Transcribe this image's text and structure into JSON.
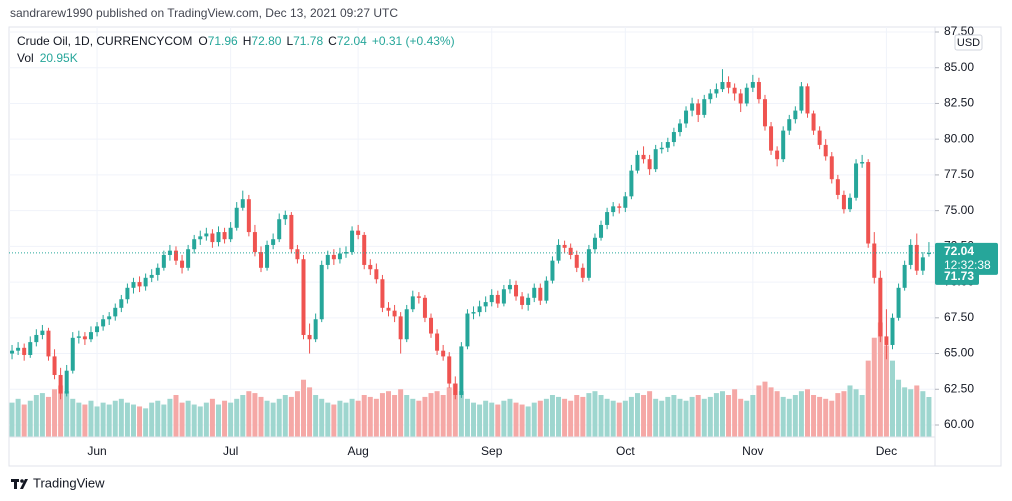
{
  "chart_data": {
    "type": "candlestick",
    "attribution": "sandrarew1990 published on TradingView.com, Dec 13, 2021 09:27 UTC",
    "title": "Crude Oil, 1D, CURRENCYCOM",
    "ohlc_header": [
      {
        "label": "O",
        "value": "71.96"
      },
      {
        "label": "H",
        "value": "72.80"
      },
      {
        "label": "L",
        "value": "71.78"
      },
      {
        "label": "C",
        "value": "72.04"
      }
    ],
    "change": "+0.31 (+0.43%)",
    "volume_label": "Vol",
    "volume_value": "20.95K",
    "currency": "USD",
    "brand": "TradingView",
    "up_color": "#26a69a",
    "down_color": "#ef5350",
    "up_volume_color": "#9ed6cf",
    "down_volume_color": "#f5a8a6",
    "last_price": 72.04,
    "countdown": "12:32:38",
    "prev_close": 71.73,
    "grid": true,
    "ylim": [
      59.16,
      87.85
    ],
    "yticks": [
      {
        "value": 60,
        "label": "60.00"
      },
      {
        "value": 62.5,
        "label": "62.50"
      },
      {
        "value": 65,
        "label": "65.00"
      },
      {
        "value": 67.5,
        "label": "67.50"
      },
      {
        "value": 70,
        "label": "70.00"
      },
      {
        "value": 72.5,
        "label": "72.50"
      },
      {
        "value": 75,
        "label": "75.00"
      },
      {
        "value": 77.5,
        "label": "77.50"
      },
      {
        "value": 80,
        "label": "80.00"
      },
      {
        "value": 82.5,
        "label": "82.50"
      },
      {
        "value": 85,
        "label": "85.00"
      },
      {
        "value": 87.5,
        "label": "87.50"
      }
    ],
    "xlim": [
      -0.5,
      152
    ],
    "xticks": [
      {
        "value": 14,
        "label": "Jun"
      },
      {
        "value": 36,
        "label": "Jul"
      },
      {
        "value": 57,
        "label": "Aug"
      },
      {
        "value": 79,
        "label": "Sep"
      },
      {
        "value": 101,
        "label": "Oct"
      },
      {
        "value": 122,
        "label": "Nov"
      },
      {
        "value": 144,
        "label": "Dec"
      }
    ],
    "volume_lim": [
      0,
      110
    ],
    "candles": [
      [
        65.0,
        65.6,
        64.6,
        65.2
      ],
      [
        65.2,
        65.8,
        64.9,
        65.4
      ],
      [
        65.4,
        65.7,
        64.5,
        64.9
      ],
      [
        64.9,
        66.2,
        64.7,
        65.8
      ],
      [
        65.8,
        66.7,
        65.5,
        66.3
      ],
      [
        66.3,
        67.0,
        66.0,
        66.6
      ],
      [
        66.6,
        66.8,
        64.5,
        64.8
      ],
      [
        64.8,
        65.3,
        63.2,
        63.5
      ],
      [
        63.5,
        64.0,
        61.8,
        62.2
      ],
      [
        62.2,
        64.2,
        62.0,
        63.8
      ],
      [
        63.8,
        66.5,
        63.6,
        66.1
      ],
      [
        66.1,
        66.6,
        65.7,
        66.2
      ],
      [
        66.2,
        66.5,
        65.6,
        66.0
      ],
      [
        66.0,
        66.9,
        65.8,
        66.5
      ],
      [
        66.5,
        67.2,
        66.2,
        66.9
      ],
      [
        66.9,
        67.7,
        66.6,
        67.4
      ],
      [
        67.4,
        67.9,
        67.0,
        67.6
      ],
      [
        67.6,
        68.5,
        67.3,
        68.2
      ],
      [
        68.2,
        69.1,
        67.9,
        68.8
      ],
      [
        68.8,
        69.9,
        68.5,
        69.6
      ],
      [
        69.6,
        70.3,
        69.2,
        70.0
      ],
      [
        70.0,
        70.4,
        69.3,
        69.7
      ],
      [
        69.7,
        70.6,
        69.4,
        70.3
      ],
      [
        70.3,
        70.9,
        70.0,
        70.5
      ],
      [
        70.5,
        71.3,
        70.1,
        71.0
      ],
      [
        71.0,
        72.2,
        70.8,
        71.9
      ],
      [
        71.9,
        72.6,
        71.5,
        72.2
      ],
      [
        72.2,
        72.5,
        71.2,
        71.5
      ],
      [
        71.5,
        71.9,
        70.6,
        71.0
      ],
      [
        71.0,
        72.6,
        70.8,
        72.3
      ],
      [
        72.3,
        73.3,
        72.0,
        73.0
      ],
      [
        73.0,
        73.6,
        72.6,
        73.2
      ],
      [
        73.2,
        73.8,
        72.9,
        73.4
      ],
      [
        73.4,
        73.7,
        72.4,
        72.8
      ],
      [
        72.8,
        73.9,
        72.5,
        73.5
      ],
      [
        73.5,
        73.8,
        72.7,
        73.0
      ],
      [
        73.0,
        74.2,
        72.8,
        73.8
      ],
      [
        73.8,
        75.6,
        73.6,
        75.2
      ],
      [
        75.2,
        76.4,
        75.0,
        75.8
      ],
      [
        75.8,
        76.1,
        73.2,
        73.5
      ],
      [
        73.5,
        74.0,
        71.8,
        72.1
      ],
      [
        72.1,
        72.5,
        70.7,
        71.0
      ],
      [
        71.0,
        72.9,
        70.8,
        72.6
      ],
      [
        72.6,
        73.4,
        72.3,
        73.0
      ],
      [
        73.0,
        74.8,
        72.8,
        74.4
      ],
      [
        74.4,
        75.0,
        74.0,
        74.7
      ],
      [
        74.7,
        74.9,
        72.0,
        72.3
      ],
      [
        72.3,
        72.6,
        71.3,
        71.6
      ],
      [
        71.6,
        71.9,
        66.0,
        66.3
      ],
      [
        66.3,
        67.1,
        65.0,
        66.0
      ],
      [
        66.0,
        67.8,
        65.8,
        67.4
      ],
      [
        67.4,
        71.5,
        67.2,
        71.2
      ],
      [
        71.2,
        72.2,
        70.9,
        71.9
      ],
      [
        71.9,
        72.3,
        71.2,
        71.6
      ],
      [
        71.6,
        72.4,
        71.3,
        72.0
      ],
      [
        72.0,
        72.5,
        71.7,
        72.1
      ],
      [
        72.1,
        73.9,
        71.9,
        73.6
      ],
      [
        73.6,
        74.0,
        73.0,
        73.3
      ],
      [
        73.3,
        73.5,
        70.9,
        71.2
      ],
      [
        71.2,
        71.6,
        70.5,
        70.9
      ],
      [
        70.9,
        71.3,
        69.9,
        70.2
      ],
      [
        70.2,
        70.5,
        67.9,
        68.2
      ],
      [
        68.2,
        68.6,
        67.6,
        68.0
      ],
      [
        68.0,
        68.4,
        67.2,
        67.6
      ],
      [
        67.6,
        67.9,
        65.0,
        66.0
      ],
      [
        66.0,
        68.4,
        65.8,
        68.1
      ],
      [
        68.1,
        69.4,
        67.9,
        69.0
      ],
      [
        69.0,
        69.3,
        68.5,
        68.9
      ],
      [
        68.9,
        69.1,
        67.2,
        67.5
      ],
      [
        67.5,
        67.8,
        66.1,
        66.4
      ],
      [
        66.4,
        66.7,
        64.9,
        65.2
      ],
      [
        65.2,
        65.6,
        64.5,
        64.8
      ],
      [
        64.8,
        65.1,
        62.6,
        62.9
      ],
      [
        62.9,
        63.4,
        61.8,
        62.1
      ],
      [
        62.1,
        65.8,
        61.9,
        65.5
      ],
      [
        65.5,
        68.1,
        65.3,
        67.8
      ],
      [
        67.8,
        68.3,
        67.4,
        67.9
      ],
      [
        67.9,
        68.7,
        67.6,
        68.3
      ],
      [
        68.3,
        69.0,
        67.9,
        68.6
      ],
      [
        68.6,
        69.5,
        68.3,
        69.1
      ],
      [
        69.1,
        69.4,
        68.2,
        68.5
      ],
      [
        68.5,
        69.8,
        68.3,
        69.5
      ],
      [
        69.5,
        70.2,
        69.2,
        69.8
      ],
      [
        69.8,
        70.1,
        68.7,
        69.0
      ],
      [
        69.0,
        69.3,
        68.1,
        68.4
      ],
      [
        68.4,
        69.2,
        68.0,
        68.9
      ],
      [
        68.9,
        69.9,
        68.6,
        69.6
      ],
      [
        69.6,
        69.9,
        68.4,
        68.7
      ],
      [
        68.7,
        70.4,
        68.5,
        70.1
      ],
      [
        70.1,
        71.8,
        69.9,
        71.5
      ],
      [
        71.5,
        73.0,
        71.3,
        72.6
      ],
      [
        72.6,
        72.9,
        72.0,
        72.4
      ],
      [
        72.4,
        72.7,
        71.6,
        71.9
      ],
      [
        71.9,
        72.2,
        70.7,
        71.0
      ],
      [
        71.0,
        71.3,
        70.0,
        70.3
      ],
      [
        70.3,
        72.6,
        70.1,
        72.3
      ],
      [
        72.3,
        73.4,
        72.0,
        73.1
      ],
      [
        73.1,
        74.3,
        72.9,
        74.0
      ],
      [
        74.0,
        75.2,
        73.7,
        74.9
      ],
      [
        74.9,
        75.6,
        74.6,
        75.3
      ],
      [
        75.3,
        75.5,
        74.8,
        75.2
      ],
      [
        75.2,
        76.3,
        74.9,
        76.0
      ],
      [
        76.0,
        78.2,
        75.8,
        77.8
      ],
      [
        77.8,
        79.2,
        77.6,
        78.9
      ],
      [
        78.9,
        79.5,
        78.3,
        78.6
      ],
      [
        78.6,
        78.9,
        77.5,
        77.9
      ],
      [
        77.9,
        79.6,
        77.7,
        79.3
      ],
      [
        79.3,
        79.8,
        79.0,
        79.4
      ],
      [
        79.4,
        80.1,
        79.1,
        79.8
      ],
      [
        79.8,
        80.8,
        79.5,
        80.5
      ],
      [
        80.5,
        81.4,
        80.2,
        81.1
      ],
      [
        81.1,
        82.3,
        80.8,
        82.0
      ],
      [
        82.0,
        82.9,
        81.6,
        82.5
      ],
      [
        82.5,
        82.8,
        81.2,
        81.7
      ],
      [
        81.7,
        83.1,
        81.5,
        82.8
      ],
      [
        82.8,
        83.5,
        82.5,
        83.2
      ],
      [
        83.2,
        83.9,
        82.9,
        83.5
      ],
      [
        83.5,
        84.9,
        83.3,
        84.0
      ],
      [
        84.0,
        84.4,
        83.2,
        83.6
      ],
      [
        83.6,
        83.9,
        82.7,
        83.2
      ],
      [
        83.2,
        83.5,
        81.9,
        82.5
      ],
      [
        82.5,
        83.9,
        82.3,
        83.6
      ],
      [
        83.6,
        84.5,
        83.3,
        84.0
      ],
      [
        84.0,
        84.3,
        82.5,
        82.8
      ],
      [
        82.8,
        83.1,
        80.6,
        80.9
      ],
      [
        80.9,
        81.2,
        78.9,
        79.2
      ],
      [
        79.2,
        79.5,
        78.1,
        78.6
      ],
      [
        78.6,
        80.9,
        78.4,
        80.6
      ],
      [
        80.6,
        81.7,
        80.3,
        81.4
      ],
      [
        81.4,
        82.3,
        81.1,
        82.0
      ],
      [
        82.0,
        84.0,
        81.8,
        83.7
      ],
      [
        83.7,
        83.9,
        81.5,
        81.8
      ],
      [
        81.8,
        82.0,
        80.3,
        80.6
      ],
      [
        80.6,
        80.9,
        79.3,
        79.6
      ],
      [
        79.6,
        80.0,
        78.5,
        78.8
      ],
      [
        78.8,
        79.1,
        76.9,
        77.2
      ],
      [
        77.2,
        77.5,
        75.8,
        76.1
      ],
      [
        76.1,
        76.4,
        74.8,
        75.1
      ],
      [
        75.1,
        76.2,
        74.9,
        75.9
      ],
      [
        75.9,
        78.6,
        75.7,
        78.3
      ],
      [
        78.3,
        78.9,
        78.0,
        78.4
      ],
      [
        78.4,
        78.6,
        72.4,
        72.7
      ],
      [
        72.7,
        73.5,
        69.9,
        70.3
      ],
      [
        70.3,
        70.8,
        65.8,
        66.2
      ],
      [
        66.2,
        68.1,
        64.6,
        65.6
      ],
      [
        65.6,
        67.8,
        65.3,
        67.5
      ],
      [
        67.5,
        69.9,
        67.3,
        69.6
      ],
      [
        69.6,
        71.5,
        69.4,
        71.2
      ],
      [
        71.2,
        73.0,
        70.9,
        72.6
      ],
      [
        72.6,
        73.4,
        70.5,
        70.8
      ],
      [
        70.8,
        72.1,
        70.5,
        71.73
      ],
      [
        71.96,
        72.8,
        71.78,
        72.04
      ]
    ],
    "volume": [
      18,
      20,
      17,
      19,
      22,
      23,
      21,
      25,
      27,
      24,
      20,
      18,
      17,
      19,
      16,
      18,
      17,
      19,
      20,
      18,
      17,
      16,
      15,
      18,
      19,
      17,
      20,
      22,
      18,
      19,
      17,
      16,
      18,
      20,
      17,
      19,
      18,
      20,
      22,
      24,
      23,
      21,
      19,
      18,
      20,
      22,
      21,
      24,
      30,
      26,
      22,
      20,
      18,
      17,
      19,
      18,
      20,
      19,
      22,
      21,
      20,
      23,
      24,
      22,
      25,
      22,
      20,
      19,
      21,
      23,
      24,
      22,
      26,
      28,
      24,
      20,
      18,
      17,
      19,
      18,
      17,
      19,
      20,
      18,
      17,
      16,
      18,
      19,
      20,
      22,
      21,
      20,
      19,
      22,
      21,
      23,
      24,
      22,
      20,
      19,
      18,
      19,
      21,
      23,
      22,
      24,
      20,
      19,
      21,
      22,
      20,
      19,
      21,
      22,
      20,
      21,
      23,
      24,
      22,
      25,
      20,
      19,
      22,
      27,
      29,
      26,
      24,
      21,
      20,
      22,
      24,
      25,
      22,
      21,
      20,
      19,
      23,
      24,
      27,
      25,
      22,
      40,
      52,
      60,
      48,
      40,
      30,
      26,
      25,
      27,
      24,
      20.95
    ]
  }
}
